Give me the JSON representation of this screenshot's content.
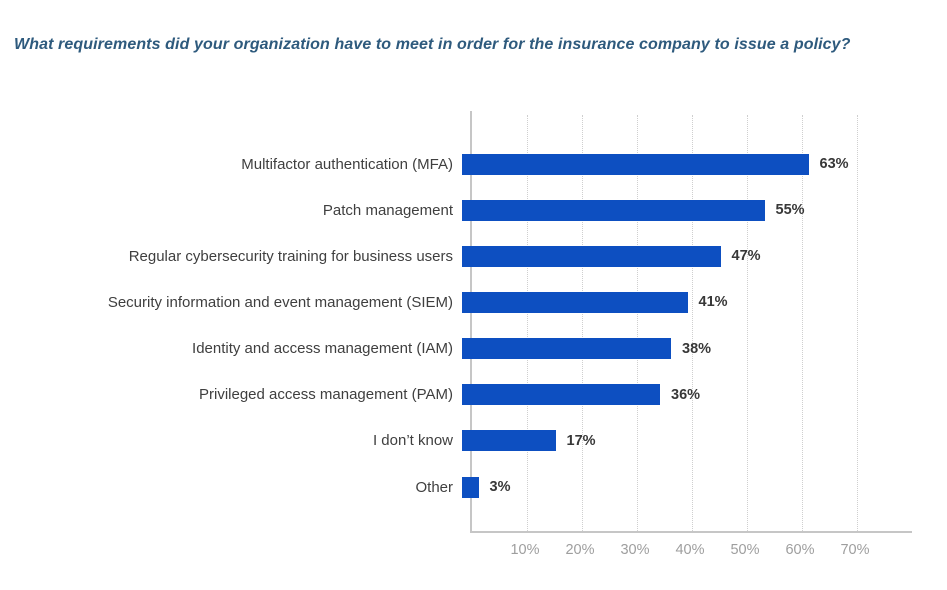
{
  "title": "What requirements did your organization have to meet in order for the insurance company to issue a policy?",
  "chart_data": {
    "type": "bar",
    "orientation": "horizontal",
    "title": "What requirements did your organization have to meet in order for the insurance company to issue a policy?",
    "categories": [
      "Multifactor authentication (MFA)",
      "Patch management",
      "Regular cybersecurity training for business users",
      "Security information and event management (SIEM)",
      "Identity and access management (IAM)",
      "Privileged access management (PAM)",
      "I don’t know",
      "Other"
    ],
    "values": [
      63,
      55,
      47,
      41,
      38,
      36,
      17,
      3
    ],
    "value_labels": [
      "63%",
      "55%",
      "47%",
      "41%",
      "38%",
      "36%",
      "17%",
      "3%"
    ],
    "xlabel": "",
    "ylabel": "",
    "xlim": [
      0,
      80
    ],
    "xticks": [
      "10%",
      "20%",
      "30%",
      "40%",
      "50%",
      "60%",
      "70%"
    ],
    "xtick_values": [
      10,
      20,
      30,
      40,
      50,
      60,
      70
    ],
    "grid": "vertical-dotted",
    "legend": "none",
    "bar_color": "#0d4fc1",
    "title_color": "#2e5a7d",
    "label_color": "#3f3f3f",
    "value_color": "#383838",
    "tick_color": "#9e9e9e",
    "axis_color": "#c6c6c6"
  }
}
